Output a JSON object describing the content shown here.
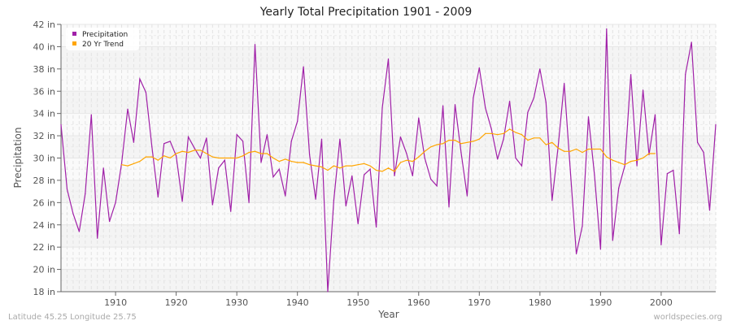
{
  "chart_data": {
    "type": "line",
    "title": "Yearly Total Precipitation 1901 - 2009",
    "xlabel": "Year",
    "ylabel": "Precipitation",
    "xlim": [
      1901,
      2009
    ],
    "ylim": [
      18,
      42
    ],
    "y_unit": "in",
    "x_ticks": [
      1910,
      1920,
      1930,
      1940,
      1950,
      1960,
      1970,
      1980,
      1990,
      2000
    ],
    "y_ticks": [
      18,
      20,
      22,
      24,
      26,
      28,
      30,
      32,
      34,
      36,
      38,
      40,
      42
    ],
    "y_tick_labels": [
      "18 in",
      "20 in",
      "22 in",
      "24 in",
      "26 in",
      "28 in",
      "30 in",
      "32 in",
      "34 in",
      "36 in",
      "38 in",
      "40 in",
      "42 in"
    ],
    "grid": true,
    "legend_position": "top-left",
    "series": [
      {
        "name": "Precipitation",
        "color": "#a020a8",
        "x_start": 1901,
        "values": [
          33.0,
          27.2,
          25.0,
          23.4,
          26.8,
          33.9,
          22.8,
          29.1,
          24.3,
          26.0,
          29.5,
          34.4,
          31.4,
          37.1,
          35.9,
          31.0,
          26.5,
          31.3,
          31.5,
          30.2,
          26.1,
          31.9,
          30.9,
          30.0,
          31.8,
          25.8,
          29.1,
          29.8,
          25.2,
          32.1,
          31.5,
          26.0,
          40.2,
          29.6,
          32.1,
          28.3,
          29.0,
          26.6,
          31.5,
          33.3,
          38.2,
          30.3,
          26.3,
          31.7,
          18.0,
          26.2,
          31.7,
          25.7,
          28.4,
          24.1,
          28.5,
          29.0,
          23.8,
          34.5,
          38.9,
          28.4,
          31.9,
          30.4,
          28.4,
          33.6,
          30.0,
          28.1,
          27.5,
          34.7,
          25.6,
          34.8,
          30.5,
          26.6,
          35.4,
          38.1,
          34.5,
          32.6,
          29.9,
          31.7,
          35.1,
          30.0,
          29.3,
          34.1,
          35.4,
          38.0,
          35.0,
          26.2,
          31.0,
          36.7,
          29.0,
          21.4,
          23.9,
          33.7,
          28.5,
          21.8,
          41.6,
          22.6,
          27.3,
          29.3,
          37.5,
          29.3,
          36.1,
          30.3,
          33.9,
          22.2,
          28.6,
          28.9,
          23.2,
          37.5,
          40.4,
          31.4,
          30.5,
          25.3,
          33.0
        ]
      },
      {
        "name": "20 Yr Trend",
        "color": "#ffa500",
        "x_start": 1911,
        "values": [
          29.4,
          29.3,
          29.5,
          29.7,
          30.1,
          30.1,
          29.8,
          30.2,
          30.0,
          30.4,
          30.6,
          30.5,
          30.7,
          30.7,
          30.4,
          30.1,
          30.0,
          30.0,
          30.0,
          30.0,
          30.2,
          30.5,
          30.6,
          30.4,
          30.4,
          30.0,
          29.7,
          29.9,
          29.7,
          29.6,
          29.6,
          29.4,
          29.3,
          29.2,
          28.9,
          29.3,
          29.1,
          29.3,
          29.3,
          29.4,
          29.5,
          29.3,
          28.9,
          28.8,
          29.1,
          28.8,
          29.6,
          29.8,
          29.7,
          30.1,
          30.6,
          31.0,
          31.2,
          31.3,
          31.6,
          31.6,
          31.3,
          31.4,
          31.5,
          31.7,
          32.2,
          32.2,
          32.1,
          32.2,
          32.6,
          32.3,
          32.1,
          31.6,
          31.8,
          31.8,
          31.2,
          31.4,
          30.9,
          30.6,
          30.6,
          30.8,
          30.5,
          30.8,
          30.8,
          30.8,
          30.1,
          29.8,
          29.6,
          29.4,
          29.7,
          29.8,
          30.0,
          30.4,
          30.4
        ]
      }
    ]
  },
  "footer": {
    "location": "Latitude 45.25 Longitude 25.75",
    "source": "worldspecies.org"
  }
}
